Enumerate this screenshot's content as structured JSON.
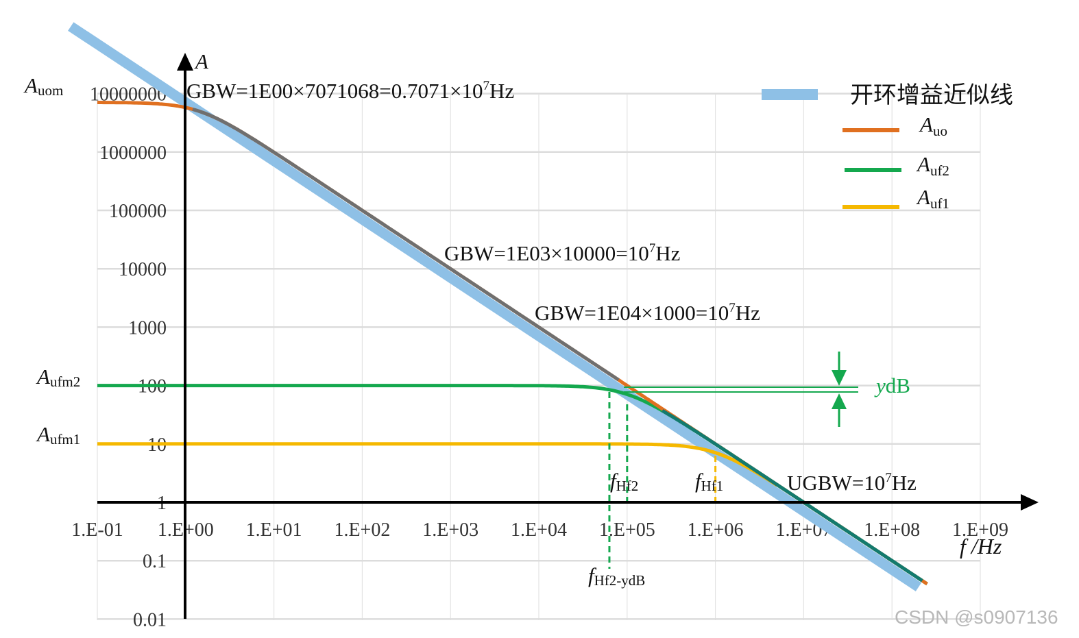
{
  "chart_data": {
    "type": "line",
    "x_scale": "log",
    "y_scale": "log",
    "grid": true,
    "legend_position": "top-right",
    "x_axis_label": "f /Hz",
    "y_axis_label": "A",
    "x_ticks": [
      "1.E-01",
      "1.E+00",
      "1.E+01",
      "1.E+02",
      "1.E+03",
      "1.E+04",
      "1.E+05",
      "1.E+06",
      "1.E+07",
      "1.E+08",
      "1.E+09"
    ],
    "y_ticks": [
      "10000000",
      "1000000",
      "100000",
      "10000",
      "1000",
      "100",
      "10",
      "1",
      "0.1",
      "0.01"
    ],
    "series": [
      {
        "name": "开环增益近似线",
        "color": "#8ec0e6",
        "x": [
          0.05,
          200000000
        ],
        "y": [
          141421356,
          0.035355
        ]
      },
      {
        "name": "A_uo",
        "color": "#e07020",
        "A0": 7071068,
        "fc": 1.414,
        "x": [
          0.1,
          0.3,
          0.6,
          1,
          2,
          5,
          10,
          100,
          1000,
          10000,
          100000,
          1000000,
          10000000,
          100000000
        ],
        "y": [
          7071068,
          7070000,
          6700000,
          5780000,
          3170000,
          1373000,
          700000,
          70700,
          7071,
          707,
          70.7,
          7.07,
          0.71,
          0.071
        ]
      },
      {
        "name": "A_uf2",
        "color": "#14a84e",
        "A0": 100,
        "fc": 100000,
        "x": [
          0.1,
          1000,
          10000,
          30000,
          50000,
          70710,
          100000,
          200000,
          1000000,
          10000000,
          100000000
        ],
        "y": [
          100,
          100,
          99.5,
          95.8,
          89.4,
          81.6,
          70.7,
          44.7,
          9.95,
          1,
          0.1
        ]
      },
      {
        "name": "A_uf1",
        "color": "#f5b800",
        "A0": 10,
        "fc": 1000000,
        "x": [
          0.1,
          10000,
          100000,
          300000,
          500000,
          700000,
          1000000,
          2000000,
          10000000,
          100000000
        ],
        "y": [
          10,
          10,
          9.95,
          9.58,
          8.94,
          8.19,
          7.07,
          4.47,
          0.995,
          0.1
        ]
      }
    ],
    "legend": {
      "open_loop": "开环增益近似线",
      "auo": {
        "base": "A",
        "sub": "uo"
      },
      "auf2": {
        "base": "A",
        "sub": "uf2"
      },
      "auf1": {
        "base": "A",
        "sub": "uf1"
      }
    },
    "annotations": {
      "gbw1": {
        "pre": "GBW=1E00×7071068=0.7071×10",
        "sup": "7",
        "post": "Hz"
      },
      "gbw2": {
        "pre": "GBW=1E03×10000=10",
        "sup": "7",
        "post": "Hz"
      },
      "gbw3": {
        "pre": "GBW=1E04×1000=10",
        "sup": "7",
        "post": "Hz"
      },
      "ugbw": {
        "pre": "UGBW=10",
        "sup": "7",
        "post": "Hz"
      },
      "ydb": {
        "y": "y",
        "db": "dB"
      },
      "fhf2": {
        "base": "f",
        "sub": "Hf2"
      },
      "fhf1": {
        "base": "f",
        "sub": "Hf1"
      },
      "fhf2ydb": {
        "base": "f",
        "sub": "Hf2-ydB"
      },
      "auom": {
        "base": "A",
        "sub": "uom"
      },
      "aufm2": {
        "base": "A",
        "sub": "ufm2"
      },
      "aufm1": {
        "base": "A",
        "sub": "ufm1"
      }
    },
    "markers": {
      "f_hf2": 100000,
      "f_hf1": 1000000,
      "f_hf2_ydb": 63000,
      "ugbw": 10000000
    }
  },
  "watermark": "CSDN @s0907136"
}
